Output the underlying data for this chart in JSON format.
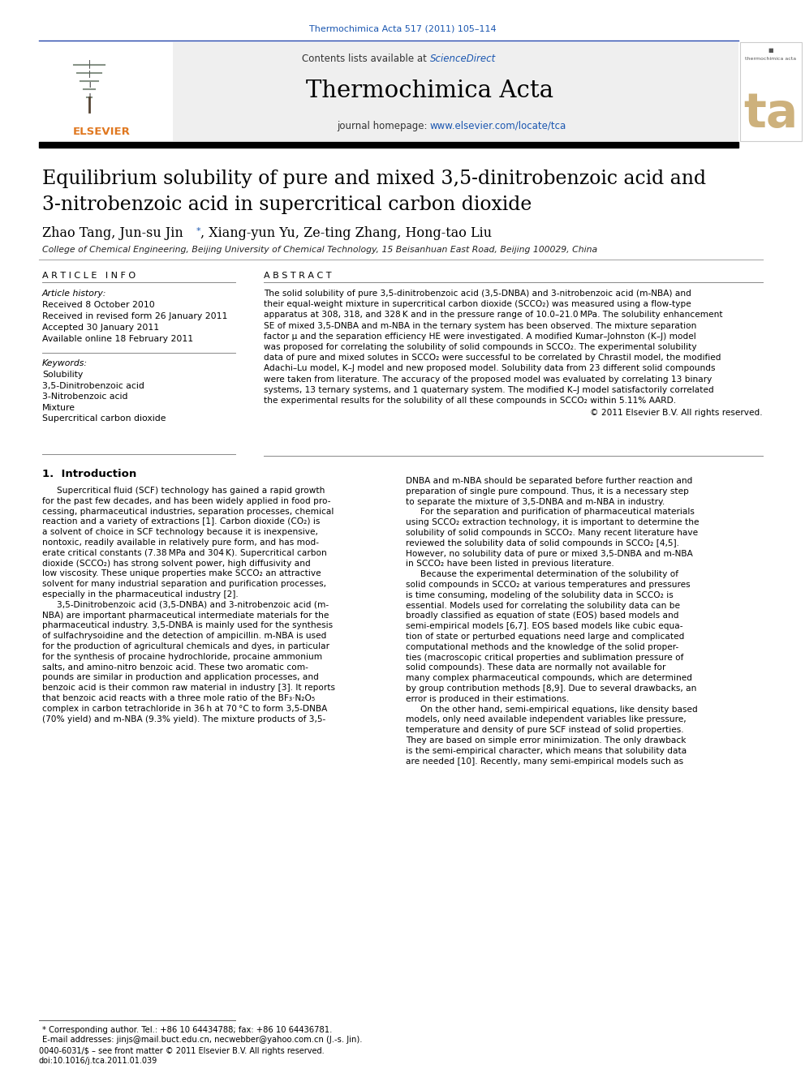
{
  "journal_ref": "Thermochimica Acta 517 (2011) 105–114",
  "journal_name": "Thermochimica Acta",
  "contents_text": "Contents lists available at ScienceDirect",
  "sciencedirect_text": "ScienceDirect",
  "journal_homepage_prefix": "journal homepage: ",
  "journal_homepage_url": "www.elsevier.com/locate/tca",
  "paper_title_line1": "Equilibrium solubility of pure and mixed 3,5-dinitrobenzoic acid and",
  "paper_title_line2": "3-nitrobenzoic acid in supercritical carbon dioxide",
  "authors_pre": "Zhao Tang, Jun-su Jin",
  "authors_post": ", Xiang-yun Yu, Ze-ting Zhang, Hong-tao Liu",
  "affiliation": "College of Chemical Engineering, Beijing University of Chemical Technology, 15 Beisanhuan East Road, Beijing 100029, China",
  "article_info_header": "A R T I C L E   I N F O",
  "article_history_header": "Article history:",
  "received": "Received 8 October 2010",
  "revised": "Received in revised form 26 January 2011",
  "accepted": "Accepted 30 January 2011",
  "online": "Available online 18 February 2011",
  "keywords_header": "Keywords:",
  "keywords": [
    "Solubility",
    "3,5-Dinitrobenzoic acid",
    "3-Nitrobenzoic acid",
    "Mixture",
    "Supercritical carbon dioxide"
  ],
  "abstract_header": "A B S T R A C T",
  "abstract_lines": [
    "The solid solubility of pure 3,5-dinitrobenzoic acid (3,5-DNBA) and 3-nitrobenzoic acid (m-NBA) and",
    "their equal-weight mixture in supercritical carbon dioxide (SCCO₂) was measured using a flow-type",
    "apparatus at 308, 318, and 328 K and in the pressure range of 10.0–21.0 MPa. The solubility enhancement",
    "SE of mixed 3,5-DNBA and m-NBA in the ternary system has been observed. The mixture separation",
    "factor μ and the separation efficiency HE were investigated. A modified Kumar–Johnston (K–J) model",
    "was proposed for correlating the solubility of solid compounds in SCCO₂. The experimental solubility",
    "data of pure and mixed solutes in SCCO₂ were successful to be correlated by Chrastil model, the modified",
    "Adachi–Lu model, K–J model and new proposed model. Solubility data from 23 different solid compounds",
    "were taken from literature. The accuracy of the proposed model was evaluated by correlating 13 binary",
    "systems, 13 ternary systems, and 1 quaternary system. The modified K–J model satisfactorily correlated",
    "the experimental results for the solubility of all these compounds in SCCO₂ within 5.11% AARD."
  ],
  "abstract_copyright": "© 2011 Elsevier B.V. All rights reserved.",
  "intro_header": "1.  Introduction",
  "intro_col1_lines": [
    "    Supercritical fluid (SCF) technology has gained a rapid growth",
    "for the past few decades, and has been widely applied in food pro-",
    "cessing, pharmaceutical industries, separation processes, chemical",
    "reaction and a variety of extractions [1]. Carbon dioxide (CO₂) is",
    "a solvent of choice in SCF technology because it is inexpensive,",
    "nontoxic, readily available in relatively pure form, and has mod-",
    "erate critical constants (7.38 MPa and 304 K). Supercritical carbon",
    "dioxide (SCCO₂) has strong solvent power, high diffusivity and",
    "low viscosity. These unique properties make SCCO₂ an attractive",
    "solvent for many industrial separation and purification processes,",
    "especially in the pharmaceutical industry [2].",
    "    3,5-Dinitrobenzoic acid (3,5-DNBA) and 3-nitrobenzoic acid (m-",
    "NBA) are important pharmaceutical intermediate materials for the",
    "pharmaceutical industry. 3,5-DNBA is mainly used for the synthesis",
    "of sulfachrysoidine and the detection of ampicillin. m-NBA is used",
    "for the production of agricultural chemicals and dyes, in particular",
    "for the synthesis of procaine hydrochloride, procaine ammonium",
    "salts, and amino-nitro benzoic acid. These two aromatic com-",
    "pounds are similar in production and application processes, and",
    "benzoic acid is their common raw material in industry [3]. It reports",
    "that benzoic acid reacts with a three mole ratio of the BF₃·N₂O₅",
    "complex in carbon tetrachloride in 36 h at 70 °C to form 3,5-DNBA",
    "(70% yield) and m-NBA (9.3% yield). The mixture products of 3,5-"
  ],
  "intro_col2_lines": [
    "DNBA and m-NBA should be separated before further reaction and",
    "preparation of single pure compound. Thus, it is a necessary step",
    "to separate the mixture of 3,5-DNBA and m-NBA in industry.",
    "    For the separation and purification of pharmaceutical materials",
    "using SCCO₂ extraction technology, it is important to determine the",
    "solubility of solid compounds in SCCO₂. Many recent literature have",
    "reviewed the solubility data of solid compounds in SCCO₂ [4,5].",
    "However, no solubility data of pure or mixed 3,5-DNBA and m-NBA",
    "in SCCO₂ have been listed in previous literature.",
    "    Because the experimental determination of the solubility of",
    "solid compounds in SCCO₂ at various temperatures and pressures",
    "is time consuming, modeling of the solubility data in SCCO₂ is",
    "essential. Models used for correlating the solubility data can be",
    "broadly classified as equation of state (EOS) based models and",
    "semi-empirical models [6,7]. EOS based models like cubic equa-",
    "tion of state or perturbed equations need large and complicated",
    "computational methods and the knowledge of the solid proper-",
    "ties (macroscopic critical properties and sublimation pressure of",
    "solid compounds). These data are normally not available for",
    "many complex pharmaceutical compounds, which are determined",
    "by group contribution methods [8,9]. Due to several drawbacks, an",
    "error is produced in their estimations.",
    "    On the other hand, semi-empirical equations, like density based",
    "models, only need available independent variables like pressure,",
    "temperature and density of pure SCF instead of solid properties.",
    "They are based on simple error minimization. The only drawback",
    "is the semi-empirical character, which means that solubility data",
    "are needed [10]. Recently, many semi-empirical models such as"
  ],
  "footnote_star": "* Corresponding author. Tel.: +86 10 64434788; fax: +86 10 64436781.",
  "footnote_email": "E-mail addresses: jinjs@mail.buct.edu.cn, necwebber@yahoo.com.cn (J.-s. Jin).",
  "issn_line": "0040-6031/$ – see front matter © 2011 Elsevier B.V. All rights reserved.",
  "doi_line": "doi:10.1016/j.tca.2011.01.039",
  "header_bg_color": "#efefef",
  "link_color": "#1a56b0",
  "orange_color": "#e07820",
  "ta_color": "#c8a96e"
}
